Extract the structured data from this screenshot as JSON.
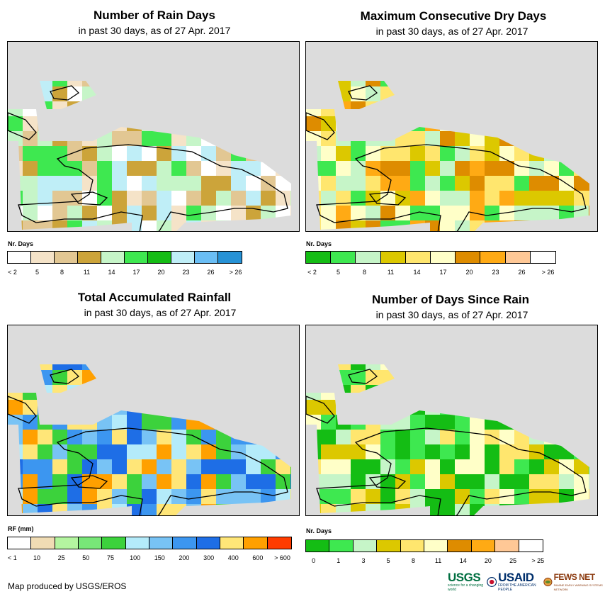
{
  "panels": [
    {
      "title": "Number of Rain Days",
      "subtitle": "in past 30 days, as of 27 Apr. 2017",
      "legend_title": "Nr. Days",
      "legend_labels": [
        "< 2",
        "5",
        "8",
        "11",
        "14",
        "17",
        "20",
        "23",
        "26",
        "> 26"
      ],
      "legend_colors": [
        "#ffffff",
        "#f5e3c8",
        "#e2c793",
        "#cca43a",
        "#c6f5c8",
        "#3ee850",
        "#14bd14",
        "#bfeef7",
        "#6abef5",
        "#2692d6"
      ],
      "cell_colors": [
        "#f5e3c8",
        "#e2c793",
        "#cca43a",
        "#c6f5c8",
        "#3ee850",
        "#bfeef7",
        "#ffffff"
      ]
    },
    {
      "title": "Maximum Consecutive Dry Days",
      "subtitle": "in past 30 days, as of 27 Apr. 2017",
      "legend_title": "Nr. Days",
      "legend_labels": [
        "< 2",
        "5",
        "8",
        "11",
        "14",
        "17",
        "20",
        "23",
        "26",
        "> 26"
      ],
      "legend_colors": [
        "#14bd14",
        "#3ee850",
        "#c6f5c8",
        "#dcc800",
        "#ffe66e",
        "#ffffc8",
        "#de8c00",
        "#ffaa14",
        "#ffc896",
        "#ffffff"
      ],
      "cell_colors": [
        "#dcc800",
        "#ffe66e",
        "#de8c00",
        "#ffaa14",
        "#3ee850",
        "#c6f5c8",
        "#ffffc8"
      ]
    },
    {
      "title": "Total Accumulated Rainfall",
      "subtitle": "in past 30 days, as of 27 Apr. 2017",
      "legend_title": "RF (mm)",
      "legend_labels": [
        "< 1",
        "10",
        "25",
        "50",
        "75",
        "100",
        "150",
        "200",
        "300",
        "400",
        "600",
        "> 600"
      ],
      "legend_colors": [
        "#ffffff",
        "#f0dcb4",
        "#b4f5a0",
        "#78e678",
        "#3cd23c",
        "#b4ebfa",
        "#78c3f5",
        "#3c96f0",
        "#1e6ee6",
        "#ffe678",
        "#ffa000",
        "#ff3c00"
      ],
      "cell_colors": [
        "#78c3f5",
        "#3c96f0",
        "#1e6ee6",
        "#ffe678",
        "#ffa000",
        "#3cd23c",
        "#b4ebfa"
      ]
    },
    {
      "title": "Number of Days Since Rain",
      "subtitle": "in past 30 days, as of 27 Apr. 2017",
      "legend_title": "Nr. Days",
      "legend_labels": [
        "0",
        "1",
        "3",
        "5",
        "8",
        "11",
        "14",
        "20",
        "25",
        "> 25"
      ],
      "legend_colors": [
        "#14bd14",
        "#3ee850",
        "#c6f5c8",
        "#dcc800",
        "#ffe66e",
        "#ffffc8",
        "#de8c00",
        "#ffaa14",
        "#ffc896",
        "#ffffff"
      ],
      "cell_colors": [
        "#14bd14",
        "#3ee850",
        "#c6f5c8",
        "#dcc800",
        "#ffe66e",
        "#14bd14",
        "#ffffc8"
      ]
    }
  ],
  "footer": {
    "credit": "Map produced by USGS/EROS",
    "logos": [
      {
        "name": "USGS",
        "tagline": "science for a changing world",
        "color": "#006f41"
      },
      {
        "name": "USAID",
        "tagline": "FROM THE AMERICAN PEOPLE",
        "color": "#002f6c"
      },
      {
        "name": "FEWS NET",
        "tagline": "FAMINE EARLY WARNING SYSTEMS NETWORK",
        "color": "#8b3a0f"
      }
    ]
  }
}
